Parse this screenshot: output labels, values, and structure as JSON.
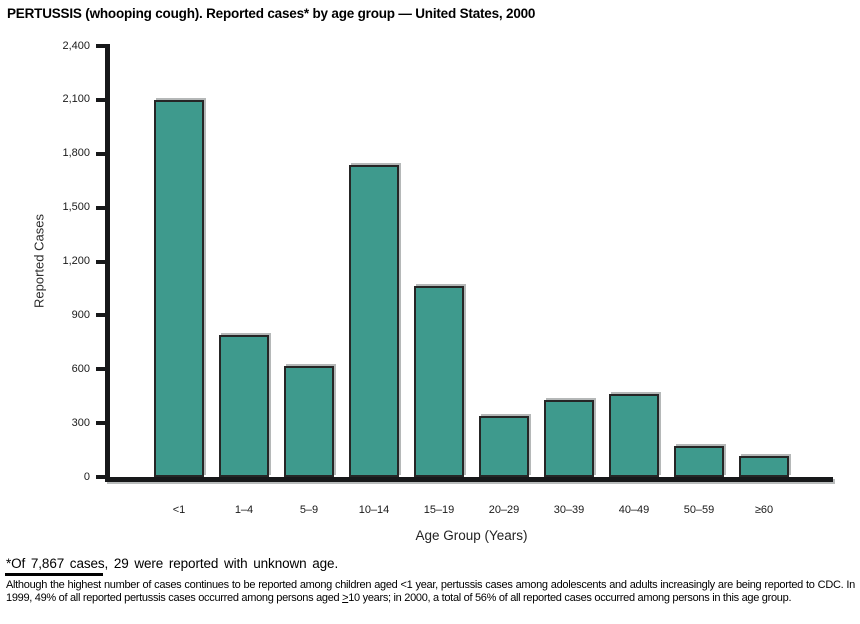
{
  "title": "PERTUSSIS (whooping cough). Reported cases* by age group — United States, 2000",
  "chart_data": {
    "type": "bar",
    "title": "PERTUSSIS (whooping cough). Reported cases* by age group — United States, 2000",
    "categories": [
      "<1",
      "1–4",
      "5–9",
      "10–14",
      "15–19",
      "20–29",
      "30–39",
      "40–49",
      "50–59",
      "≥60"
    ],
    "values": [
      2100,
      790,
      620,
      1740,
      1065,
      340,
      430,
      460,
      170,
      115
    ],
    "xlabel": "Age Group (Years)",
    "ylabel": "Reported Cases",
    "ylim": [
      0,
      2400
    ],
    "ytick_step": 300,
    "yticks": [
      "0",
      "300",
      "600",
      "900",
      "1,200",
      "1,500",
      "1,800",
      "2,100",
      "2,400"
    ],
    "grid": false,
    "legend": false,
    "bar_color": "#3e9a8d",
    "bar_border_color": "#262626",
    "axis_color": "#17181a"
  },
  "footnotes": {
    "note1": "*Of 7,867 cases, 29 were reported with unknown age.",
    "note2_before": "Although the highest number of cases continues to be reported among children aged <1 year, pertussis cases among adolescents and adults increasingly are being reported to CDC. In 1999, 49% of all reported pertussis cases occurred among persons aged ",
    "note2_gte_symbol": ">",
    "note2_after": "10 years; in 2000, a total of 56% of all reported cases occurred among persons in this age group."
  }
}
